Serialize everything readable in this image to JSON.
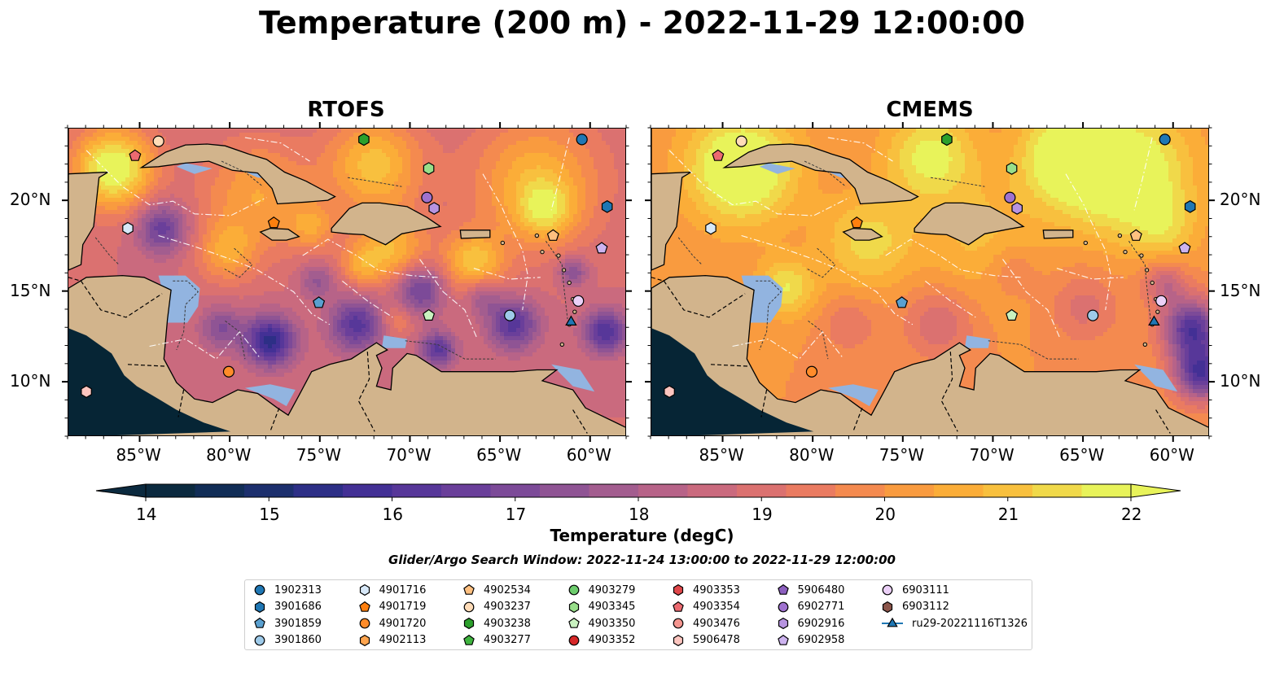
{
  "title": "Temperature (200 m) - 2022-11-29 12:00:00",
  "panels": [
    {
      "title": "RTOFS"
    },
    {
      "title": "CMEMS"
    }
  ],
  "axes": {
    "lon_labels": [
      "85°W",
      "80°W",
      "75°W",
      "70°W",
      "65°W",
      "60°W"
    ],
    "lon_values": [
      -85,
      -80,
      -75,
      -70,
      -65,
      -60
    ],
    "lat_labels": [
      "20°N",
      "15°N",
      "10°N"
    ],
    "lat_values": [
      20,
      15,
      10
    ],
    "lon_range": [
      -89,
      -58
    ],
    "lat_range": [
      7,
      24
    ]
  },
  "colorbar": {
    "label": "Temperature (degC)",
    "ticks": [
      "14",
      "15",
      "16",
      "17",
      "18",
      "19",
      "20",
      "21",
      "22"
    ],
    "range": [
      14,
      22
    ],
    "extend": "both",
    "colors": [
      "#0b2a3f",
      "#112d56",
      "#1c2f6d",
      "#2d2f86",
      "#433095",
      "#573799",
      "#6a3f9a",
      "#7c4a98",
      "#8f5494",
      "#a35d8f",
      "#b76388",
      "#ca6a7e",
      "#db7170",
      "#ea7b61",
      "#f48a4f",
      "#f99b3f",
      "#fbad38",
      "#f8c03e",
      "#f0d94a",
      "#e8f35a"
    ]
  },
  "search_window": "Glider/Argo Search Window: 2022-11-24 13:00:00 to 2022-11-29 12:00:00",
  "colors": {
    "land": "#d2b48c",
    "pacific": "#062535",
    "shallow": "#92b4e0",
    "glider_track": "#1f77b4"
  },
  "legend": [
    {
      "label": "1902313",
      "marker": "circle",
      "color": "#1f77b4"
    },
    {
      "label": "3901686",
      "marker": "hexagon",
      "color": "#1f77b4"
    },
    {
      "label": "3901859",
      "marker": "pentagon",
      "color": "#5aa0d0"
    },
    {
      "label": "3901860",
      "marker": "circle",
      "color": "#9ecae9"
    },
    {
      "label": "4901716",
      "marker": "hexagon",
      "color": "#d7e8f8"
    },
    {
      "label": "4901719",
      "marker": "pentagon",
      "color": "#ff7f0e"
    },
    {
      "label": "4901720",
      "marker": "circle",
      "color": "#ff8c2a"
    },
    {
      "label": "4902113",
      "marker": "hexagon",
      "color": "#ffa54f"
    },
    {
      "label": "4902534",
      "marker": "pentagon",
      "color": "#ffc080"
    },
    {
      "label": "4903237",
      "marker": "circle",
      "color": "#ffdcb8"
    },
    {
      "label": "4903238",
      "marker": "hexagon",
      "color": "#2ca02c"
    },
    {
      "label": "4903277",
      "marker": "pentagon",
      "color": "#3fb43f"
    },
    {
      "label": "4903279",
      "marker": "circle",
      "color": "#6ccc6c"
    },
    {
      "label": "4903345",
      "marker": "hexagon",
      "color": "#98df8a"
    },
    {
      "label": "4903350",
      "marker": "pentagon",
      "color": "#c9f2c0"
    },
    {
      "label": "4903352",
      "marker": "circle",
      "color": "#d62728"
    },
    {
      "label": "4903353",
      "marker": "hexagon",
      "color": "#e0474a"
    },
    {
      "label": "4903354",
      "marker": "pentagon",
      "color": "#ec6a70"
    },
    {
      "label": "4903476",
      "marker": "circle",
      "color": "#f4958f"
    },
    {
      "label": "5906478",
      "marker": "hexagon",
      "color": "#fcc5bf"
    },
    {
      "label": "5906480",
      "marker": "pentagon",
      "color": "#8c5fbf"
    },
    {
      "label": "6902771",
      "marker": "circle",
      "color": "#9f72cf"
    },
    {
      "label": "6902916",
      "marker": "hexagon",
      "color": "#b794e0"
    },
    {
      "label": "6902958",
      "marker": "pentagon",
      "color": "#cdb3ef"
    },
    {
      "label": "6903111",
      "marker": "circle",
      "color": "#ebd0f7"
    },
    {
      "label": "6903112",
      "marker": "hexagon",
      "color": "#8c564b"
    },
    {
      "label": "ru29-20221116T1326",
      "marker": "line-triangle",
      "color": "#1f77b4"
    }
  ],
  "platforms": [
    {
      "id": "1902313",
      "lon": -60.5,
      "lat": 23.4
    },
    {
      "id": "3901686",
      "lon": -59.1,
      "lat": 19.7
    },
    {
      "id": "3901859",
      "lon": -75.1,
      "lat": 14.4
    },
    {
      "id": "3901860",
      "lon": -64.5,
      "lat": 13.7
    },
    {
      "id": "4901716",
      "lon": -85.7,
      "lat": 18.5
    },
    {
      "id": "4901719",
      "lon": -77.6,
      "lat": 18.8
    },
    {
      "id": "4901720",
      "lon": -80.1,
      "lat": 10.6
    },
    {
      "id": "4902534",
      "lon": -62.1,
      "lat": 18.1
    },
    {
      "id": "4903237",
      "lon": -84.0,
      "lat": 23.3
    },
    {
      "id": "4903238",
      "lon": -72.6,
      "lat": 23.4
    },
    {
      "id": "4903345",
      "lon": -69.0,
      "lat": 21.8
    },
    {
      "id": "4903350",
      "lon": -69.0,
      "lat": 13.7
    },
    {
      "id": "4903354",
      "lon": -85.3,
      "lat": 22.5
    },
    {
      "id": "5906478",
      "lon": -88.0,
      "lat": 9.5
    },
    {
      "id": "6902771",
      "lon": -69.1,
      "lat": 20.2
    },
    {
      "id": "6902916",
      "lon": -68.7,
      "lat": 19.6
    },
    {
      "id": "6902958",
      "lon": -59.4,
      "lat": 17.4
    },
    {
      "id": "6903111",
      "lon": -60.7,
      "lat": 14.5
    },
    {
      "id": "ru29-20221116T1326",
      "lon": -61.1,
      "lat": 13.4
    }
  ]
}
